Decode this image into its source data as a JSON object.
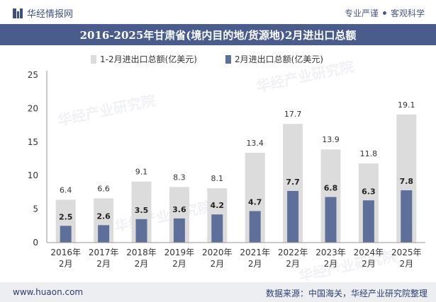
{
  "header": {
    "brand": "华经情报网",
    "slogan_left": "专业严谨",
    "slogan_right": "客观科学"
  },
  "title": "2016-2025年甘肃省(境内目的地/货源地)2月进出口总额",
  "footer": {
    "website": "www.huaon.com",
    "source": "数据来源：中国海关，华经产业研究院整理"
  },
  "watermarks": [
    "华经产业研究院",
    "www.huaon.com"
  ],
  "colors": {
    "series1": "#dcdcdc",
    "series2": "#5e6f9a",
    "title_bg": "#4a5c8c"
  },
  "chart_data": {
    "type": "bar",
    "categories": [
      "2016年\n2月",
      "2017年\n2月",
      "2018年\n2月",
      "2019年\n2月",
      "2020年\n2月",
      "2021年\n2月",
      "2022年\n2月",
      "2023年\n2月",
      "2024年\n2月",
      "2025年\n2月"
    ],
    "series": [
      {
        "name": "1-2月进出口总额(亿美元)",
        "values": [
          6.4,
          6.6,
          9.1,
          8.3,
          8.1,
          13.4,
          17.7,
          13.9,
          11.8,
          19.1
        ]
      },
      {
        "name": "2月进出口总额(亿美元)",
        "values": [
          2.5,
          2.6,
          3.5,
          3.6,
          4.2,
          4.7,
          7.7,
          6.8,
          6.3,
          7.8
        ]
      }
    ],
    "ylim": [
      0,
      25
    ],
    "yticks": [
      0,
      5,
      10,
      15,
      20,
      25
    ],
    "legend_position": "top",
    "grid": false
  }
}
